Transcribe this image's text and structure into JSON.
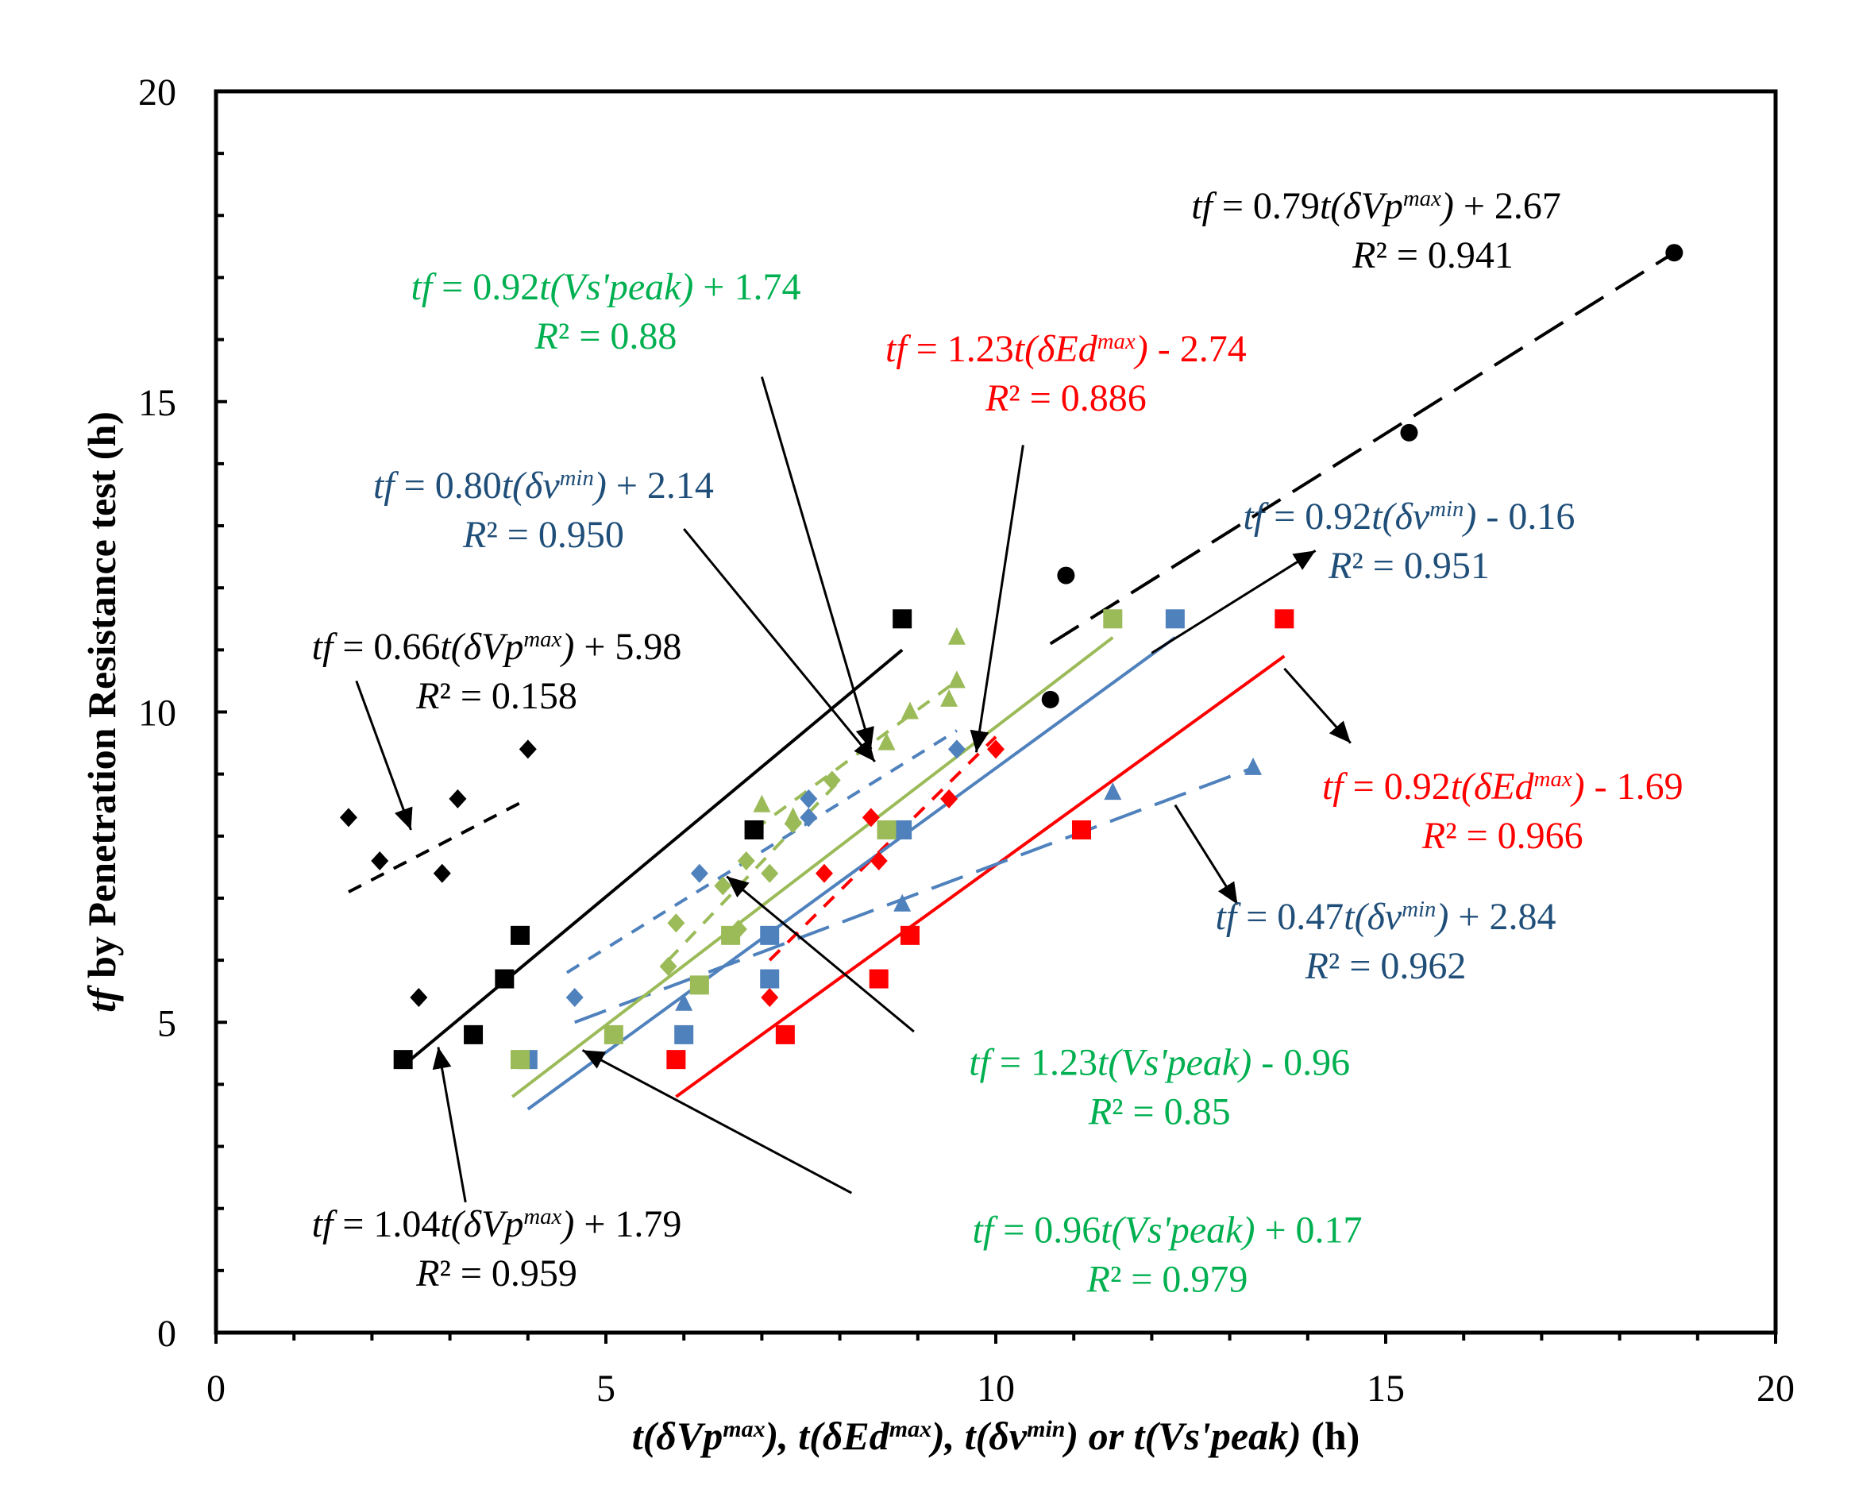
{
  "chart_data": {
    "type": "scatter",
    "xlim": [
      0,
      20
    ],
    "ylim": [
      0,
      20
    ],
    "x_ticks": [
      "0",
      "5",
      "10",
      "15",
      "20"
    ],
    "y_ticks": [
      "0",
      "5",
      "10",
      "15",
      "20"
    ],
    "xlabel_parts": [
      {
        "t": "t(δVp",
        "it": true
      },
      {
        "t": "max",
        "it": true,
        "sup": true
      },
      {
        "t": "), ",
        "it": true
      },
      {
        "t": "t(δEd",
        "it": true
      },
      {
        "t": "max",
        "it": true,
        "sup": true
      },
      {
        "t": "), ",
        "it": true
      },
      {
        "t": "t(δv",
        "it": true
      },
      {
        "t": "min",
        "it": true,
        "sup": true
      },
      {
        "t": ") or ",
        "it": true
      },
      {
        "t": "t(Vs'peak)",
        "it": true
      },
      {
        "t": " (h)",
        "it": false
      }
    ],
    "ylabel_parts": [
      {
        "t": "tf",
        "it": true
      },
      {
        "t": " by Penetration Resistance test  (h)",
        "it": false
      }
    ],
    "colors": {
      "black": "#000000",
      "red": "#ff0000",
      "blue": "#4f81bd",
      "green": "#9bbb59",
      "green_text": "#00b050",
      "blue_text": "#1f4e79",
      "red_text": "#ff0000"
    },
    "series": [
      {
        "name": "black-diamonds",
        "marker": "diamond",
        "color": "#000000",
        "x": [
          1.7,
          2.1,
          2.6,
          2.9,
          3.1,
          4.0
        ],
        "y": [
          8.3,
          7.6,
          5.4,
          7.4,
          8.6,
          9.4
        ]
      },
      {
        "name": "black-squares",
        "marker": "square",
        "color": "#000000",
        "x": [
          2.4,
          3.3,
          3.7,
          3.9,
          6.9,
          8.8
        ],
        "y": [
          4.4,
          4.8,
          5.7,
          6.4,
          8.1,
          11.5
        ]
      },
      {
        "name": "black-circles",
        "marker": "circle",
        "color": "#000000",
        "x": [
          10.7,
          10.9,
          15.3,
          18.7
        ],
        "y": [
          10.2,
          12.2,
          14.5,
          17.4
        ]
      },
      {
        "name": "red-squares",
        "marker": "square",
        "color": "#ff0000",
        "x": [
          5.9,
          7.3,
          8.5,
          8.9,
          11.1,
          13.7
        ],
        "y": [
          4.4,
          4.8,
          5.7,
          6.4,
          8.1,
          11.5
        ]
      },
      {
        "name": "red-diamonds",
        "marker": "diamond",
        "color": "#ff0000",
        "x": [
          7.1,
          7.8,
          8.4,
          8.5,
          9.4,
          10.0
        ],
        "y": [
          5.4,
          7.4,
          8.3,
          7.6,
          8.6,
          9.4
        ]
      },
      {
        "name": "blue-squares",
        "marker": "square",
        "color": "#4f81bd",
        "x": [
          4.0,
          6.0,
          7.1,
          7.1,
          8.8,
          12.3
        ],
        "y": [
          4.4,
          4.8,
          5.7,
          6.4,
          8.1,
          11.5
        ]
      },
      {
        "name": "blue-diamonds",
        "marker": "diamond",
        "color": "#4f81bd",
        "x": [
          4.6,
          6.2,
          7.6,
          7.6,
          9.5
        ],
        "y": [
          5.4,
          7.4,
          8.6,
          8.3,
          9.4
        ]
      },
      {
        "name": "blue-triangles",
        "marker": "triangle",
        "color": "#4f81bd",
        "x": [
          6.0,
          8.8,
          11.5,
          13.3
        ],
        "y": [
          5.3,
          6.9,
          8.7,
          9.1
        ]
      },
      {
        "name": "green-squares",
        "marker": "square",
        "color": "#9bbb59",
        "x": [
          3.9,
          5.1,
          6.2,
          6.6,
          8.6,
          11.5
        ],
        "y": [
          4.4,
          4.8,
          5.6,
          6.4,
          8.1,
          11.5
        ]
      },
      {
        "name": "green-diamonds",
        "marker": "diamond",
        "color": "#9bbb59",
        "x": [
          5.8,
          5.9,
          6.5,
          6.7,
          6.8,
          7.1,
          7.4,
          7.9
        ],
        "y": [
          5.9,
          6.6,
          7.2,
          6.5,
          7.6,
          7.4,
          8.2,
          8.9
        ]
      },
      {
        "name": "green-triangles",
        "marker": "triangle",
        "color": "#9bbb59",
        "x": [
          7.0,
          7.4,
          8.9,
          8.6,
          9.4,
          9.5,
          9.5
        ],
        "y": [
          8.5,
          8.3,
          10.0,
          9.5,
          10.2,
          10.5,
          11.2
        ]
      }
    ],
    "fit_lines": [
      {
        "name": "black-diamond-fit",
        "color": "#000000",
        "style": "short-dash",
        "x": [
          1.7,
          4.0
        ],
        "y": [
          7.1,
          8.6
        ]
      },
      {
        "name": "black-square-fit",
        "color": "#000000",
        "style": "solid",
        "x": [
          2.4,
          8.8
        ],
        "y": [
          4.3,
          11.0
        ]
      },
      {
        "name": "black-circle-fit",
        "color": "#000000",
        "style": "long-dash",
        "x": [
          10.7,
          18.7
        ],
        "y": [
          11.1,
          17.4
        ]
      },
      {
        "name": "red-square-fit",
        "color": "#ff0000",
        "style": "solid",
        "x": [
          5.9,
          13.7
        ],
        "y": [
          3.8,
          10.9
        ]
      },
      {
        "name": "red-diamond-fit",
        "color": "#ff0000",
        "style": "short-dash",
        "x": [
          7.1,
          10.0
        ],
        "y": [
          6.0,
          9.6
        ]
      },
      {
        "name": "blue-square-fit",
        "color": "#4f81bd",
        "style": "solid",
        "x": [
          4.0,
          12.3
        ],
        "y": [
          3.6,
          11.2
        ]
      },
      {
        "name": "blue-diamond-fit",
        "color": "#4f81bd",
        "style": "short-dash",
        "x": [
          4.5,
          9.5
        ],
        "y": [
          5.8,
          9.7
        ]
      },
      {
        "name": "blue-triangle-fit",
        "color": "#4f81bd",
        "style": "long-dash",
        "x": [
          4.6,
          13.3
        ],
        "y": [
          5.0,
          9.1
        ]
      },
      {
        "name": "green-square-fit",
        "color": "#9bbb59",
        "style": "solid",
        "x": [
          3.8,
          11.5
        ],
        "y": [
          3.8,
          11.2
        ]
      },
      {
        "name": "green-diamond-fit",
        "color": "#9bbb59",
        "style": "short-dash",
        "x": [
          5.8,
          8.0
        ],
        "y": [
          6.0,
          8.9
        ]
      },
      {
        "name": "green-triangle-fit",
        "color": "#9bbb59",
        "style": "short-dash",
        "x": [
          6.9,
          9.5
        ],
        "y": [
          8.1,
          10.5
        ]
      }
    ],
    "annotations": [
      {
        "name": "eq-black-circles",
        "color": "#000000",
        "anchor": "end",
        "tx": 17.25,
        "ty": 17.95,
        "line1": [
          {
            "t": "tf",
            "it": true
          },
          {
            "t": " = 0.79"
          },
          {
            "t": "t(δVp",
            "it": true
          },
          {
            "t": "max",
            "it": true,
            "sup": true
          },
          {
            "t": ")",
            "it": true
          },
          {
            "t": " + 2.67"
          }
        ],
        "line2": [
          {
            "t": "R",
            "it": true
          },
          {
            "t": "² = 0.941"
          }
        ],
        "l2dx": 0.0,
        "arrow": null
      },
      {
        "name": "eq-green-triangles",
        "color": "#00b050",
        "anchor": "middle",
        "tx": 5.0,
        "ty": 16.65,
        "line1": [
          {
            "t": "tf",
            "it": true
          },
          {
            "t": " = 0.92"
          },
          {
            "t": "t(Vs'peak)",
            "it": true
          },
          {
            "t": "  + 1.74"
          }
        ],
        "line2": [
          {
            "t": "R",
            "it": true
          },
          {
            "t": "² = 0.88"
          }
        ],
        "l2dx": 0.0,
        "arrow": {
          "from": [
            7.0,
            15.4
          ],
          "to": [
            8.4,
            9.4
          ]
        }
      },
      {
        "name": "eq-red-diamonds",
        "color": "#ff0000",
        "anchor": "middle",
        "tx": 10.9,
        "ty": 15.65,
        "line1": [
          {
            "t": "tf",
            "it": true
          },
          {
            "t": " = 1.23"
          },
          {
            "t": "t(δEd",
            "it": true
          },
          {
            "t": "max",
            "it": true,
            "sup": true
          },
          {
            "t": ")",
            "it": true
          },
          {
            "t": " - 2.74"
          }
        ],
        "line2": [
          {
            "t": "R",
            "it": true
          },
          {
            "t": "² = 0.886"
          }
        ],
        "l2dx": 0.0,
        "arrow": {
          "from": [
            10.35,
            14.3
          ],
          "to": [
            9.75,
            9.35
          ]
        }
      },
      {
        "name": "eq-blue-diamonds",
        "color": "#1f4e79",
        "anchor": "middle",
        "tx": 4.2,
        "ty": 13.45,
        "line1": [
          {
            "t": "tf",
            "it": true
          },
          {
            "t": " = 0.80"
          },
          {
            "t": "t(δv",
            "it": true
          },
          {
            "t": "min",
            "it": true,
            "sup": true
          },
          {
            "t": ")",
            "it": true
          },
          {
            "t": " + 2.14"
          }
        ],
        "line2": [
          {
            "t": "R",
            "it": true
          },
          {
            "t": "² = 0.950"
          }
        ],
        "l2dx": 0.0,
        "arrow": {
          "from": [
            6.0,
            12.95
          ],
          "to": [
            8.45,
            9.2
          ]
        }
      },
      {
        "name": "eq-blue-squares",
        "color": "#1f4e79",
        "anchor": "middle",
        "tx": 15.3,
        "ty": 12.95,
        "line1": [
          {
            "t": "tf",
            "it": true
          },
          {
            "t": " = 0.92"
          },
          {
            "t": "t(δv",
            "it": true
          },
          {
            "t": "min",
            "it": true,
            "sup": true
          },
          {
            "t": ")",
            "it": true
          },
          {
            "t": " - 0.16"
          }
        ],
        "line2": [
          {
            "t": "R",
            "it": true
          },
          {
            "t": "² = 0.951"
          }
        ],
        "l2dx": 0.0,
        "arrow": {
          "from": [
            12.0,
            10.95
          ],
          "to": [
            14.1,
            12.6
          ]
        }
      },
      {
        "name": "eq-black-diamonds",
        "color": "#000000",
        "anchor": "middle",
        "tx": 3.6,
        "ty": 10.85,
        "line1": [
          {
            "t": "tf",
            "it": true
          },
          {
            "t": " = 0.66"
          },
          {
            "t": "t(δVp",
            "it": true
          },
          {
            "t": "max",
            "it": true,
            "sup": true
          },
          {
            "t": ")",
            "it": true
          },
          {
            "t": " + 5.98"
          }
        ],
        "line2": [
          {
            "t": "R",
            "it": true
          },
          {
            "t": "² = 0.158"
          }
        ],
        "l2dx": 0.0,
        "arrow": {
          "from": [
            1.8,
            10.5
          ],
          "to": [
            2.5,
            8.1
          ]
        }
      },
      {
        "name": "eq-red-squares",
        "color": "#ff0000",
        "anchor": "middle",
        "tx": 16.5,
        "ty": 8.6,
        "line1": [
          {
            "t": "tf",
            "it": true
          },
          {
            "t": " = 0.92"
          },
          {
            "t": "t(δEd",
            "it": true
          },
          {
            "t": "max",
            "it": true,
            "sup": true
          },
          {
            "t": ")",
            "it": true
          },
          {
            "t": " - 1.69"
          }
        ],
        "line2": [
          {
            "t": "R",
            "it": true
          },
          {
            "t": "² = 0.966"
          }
        ],
        "l2dx": 0.0,
        "arrow": {
          "from": [
            13.7,
            10.7
          ],
          "to": [
            14.55,
            9.5
          ]
        }
      },
      {
        "name": "eq-blue-triangles",
        "color": "#1f4e79",
        "anchor": "middle",
        "tx": 15.0,
        "ty": 6.5,
        "line1": [
          {
            "t": "tf",
            "it": true
          },
          {
            "t": " = 0.47"
          },
          {
            "t": "t(δv",
            "it": true
          },
          {
            "t": "min",
            "it": true,
            "sup": true
          },
          {
            "t": ")",
            "it": true
          },
          {
            "t": " + 2.84"
          }
        ],
        "line2": [
          {
            "t": "R",
            "it": true
          },
          {
            "t": "² = 0.962"
          }
        ],
        "l2dx": 0.0,
        "arrow": {
          "from": [
            12.3,
            8.5
          ],
          "to": [
            13.1,
            6.9
          ]
        }
      },
      {
        "name": "eq-green-squares",
        "color": "#00b050",
        "anchor": "middle",
        "tx": 12.1,
        "ty": 4.15,
        "line1": [
          {
            "t": "tf",
            "it": true
          },
          {
            "t": " = 1.23"
          },
          {
            "t": "t(Vs'peak)",
            "it": true
          },
          {
            "t": " - 0.96"
          }
        ],
        "line2": [
          {
            "t": "R",
            "it": true
          },
          {
            "t": "² = 0.85"
          }
        ],
        "l2dx": 0.0,
        "arrow": {
          "from": [
            8.95,
            4.85
          ],
          "to": [
            6.55,
            7.35
          ]
        }
      },
      {
        "name": "eq-green-diamonds",
        "color": "#00b050",
        "anchor": "middle",
        "tx": 12.2,
        "ty": 1.45,
        "line1": [
          {
            "t": "tf",
            "it": true
          },
          {
            "t": " = 0.96"
          },
          {
            "t": "t(Vs'peak)",
            "it": true
          },
          {
            "t": " + 0.17"
          }
        ],
        "line2": [
          {
            "t": "R",
            "it": true
          },
          {
            "t": "² = 0.979"
          }
        ],
        "l2dx": 0.0,
        "arrow": {
          "from": [
            8.15,
            2.25
          ],
          "to": [
            4.7,
            4.55
          ]
        }
      },
      {
        "name": "eq-black-squares",
        "color": "#000000",
        "anchor": "middle",
        "tx": 3.6,
        "ty": 1.55,
        "line1": [
          {
            "t": "tf",
            "it": true
          },
          {
            "t": " = 1.04"
          },
          {
            "t": "t(δVp",
            "it": true
          },
          {
            "t": "max",
            "it": true,
            "sup": true
          },
          {
            "t": ")",
            "it": true
          },
          {
            "t": " + 1.79"
          }
        ],
        "line2": [
          {
            "t": "R",
            "it": true
          },
          {
            "t": "² = 0.959"
          }
        ],
        "l2dx": 0.0,
        "arrow": {
          "from": [
            3.2,
            2.1
          ],
          "to": [
            2.85,
            4.6
          ]
        }
      }
    ]
  }
}
